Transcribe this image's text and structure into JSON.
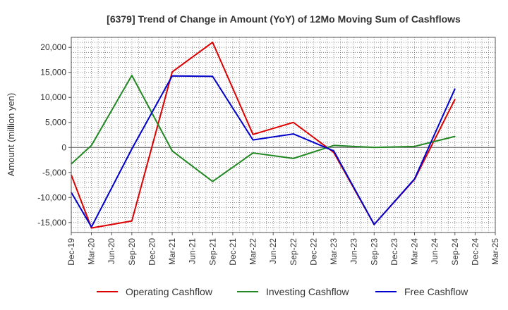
{
  "chart_data": {
    "type": "line",
    "title": "[6379]  Trend of Change in Amount (YoY) of 12Mo Moving Sum of Cashflows",
    "xlabel": "",
    "ylabel": "Amount (million yen)",
    "ylim": [
      -17000,
      22000
    ],
    "yticks": [
      20000,
      15000,
      10000,
      5000,
      0,
      -5000,
      -10000,
      -15000
    ],
    "ytick_labels": [
      "20,000",
      "15,000",
      "10,000",
      "5,000",
      "0",
      "-5,000",
      "-10,000",
      "-15,000"
    ],
    "categories": [
      "Dec-19",
      "Mar-20",
      "Jun-20",
      "Sep-20",
      "Dec-20",
      "Mar-21",
      "Jun-21",
      "Sep-21",
      "Dec-21",
      "Mar-22",
      "Jun-22",
      "Sep-22",
      "Dec-22",
      "Mar-23",
      "Jun-23",
      "Sep-23",
      "Dec-23",
      "Mar-24",
      "Jun-24",
      "Sep-24",
      "Dec-24",
      "Mar-25"
    ],
    "grid": true,
    "legend_position": "bottom",
    "series": [
      {
        "name": "Operating Cashflow",
        "color": "#dd0000",
        "points": [
          [
            0,
            -5500
          ],
          [
            1,
            -16100
          ],
          [
            3,
            -14700
          ],
          [
            5,
            15100
          ],
          [
            7,
            21000
          ],
          [
            9,
            2600
          ],
          [
            11,
            5000
          ],
          [
            13,
            -1000
          ],
          [
            15,
            -15400
          ],
          [
            17,
            -6400
          ],
          [
            19,
            9600
          ]
        ]
      },
      {
        "name": "Investing Cashflow",
        "color": "#228822",
        "points": [
          [
            0,
            -3300
          ],
          [
            1,
            400
          ],
          [
            3,
            14400
          ],
          [
            5,
            -700
          ],
          [
            7,
            -6800
          ],
          [
            9,
            -1100
          ],
          [
            11,
            -2200
          ],
          [
            13,
            400
          ],
          [
            15,
            0
          ],
          [
            17,
            200
          ],
          [
            19,
            2200
          ]
        ]
      },
      {
        "name": "Free Cashflow",
        "color": "#0000cc",
        "points": [
          [
            0,
            -9000
          ],
          [
            1,
            -15900
          ],
          [
            3,
            -300
          ],
          [
            5,
            14300
          ],
          [
            7,
            14200
          ],
          [
            9,
            1500
          ],
          [
            11,
            2700
          ],
          [
            13,
            -700
          ],
          [
            15,
            -15400
          ],
          [
            17,
            -6300
          ],
          [
            19,
            11700
          ]
        ]
      }
    ]
  }
}
